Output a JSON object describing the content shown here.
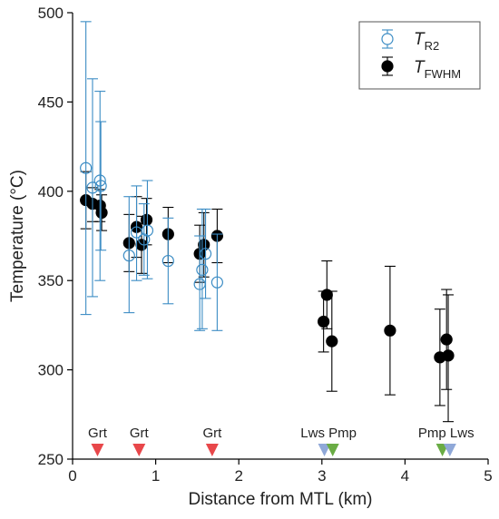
{
  "chart_data": {
    "type": "scatter",
    "title": "",
    "xlabel": "Distance from MTL (km)",
    "ylabel": "Temperature (°C)",
    "xlim": [
      0,
      5
    ],
    "ylim": [
      250,
      500
    ],
    "xticks": [
      0,
      1,
      2,
      3,
      4,
      5
    ],
    "yticks": [
      250,
      300,
      350,
      400,
      450,
      500
    ],
    "grid": false,
    "legend_position": "top-right",
    "series": [
      {
        "name_main": "T",
        "name_sub": "R2",
        "marker": "open-circle",
        "color": "#3b8cc4",
        "points": [
          {
            "x": 0.16,
            "y": 413,
            "lo": 331,
            "hi": 495
          },
          {
            "x": 0.24,
            "y": 402,
            "lo": 341,
            "hi": 463
          },
          {
            "x": 0.33,
            "y": 406,
            "lo": 350,
            "hi": 456
          },
          {
            "x": 0.34,
            "y": 403,
            "lo": 367,
            "hi": 439
          },
          {
            "x": 0.68,
            "y": 364,
            "lo": 332,
            "hi": 397
          },
          {
            "x": 0.77,
            "y": 377,
            "lo": 350,
            "hi": 403
          },
          {
            "x": 0.86,
            "y": 373,
            "lo": 353,
            "hi": 393
          },
          {
            "x": 0.9,
            "y": 378,
            "lo": 351,
            "hi": 406
          },
          {
            "x": 1.15,
            "y": 361,
            "lo": 337,
            "hi": 385
          },
          {
            "x": 1.53,
            "y": 348,
            "lo": 322,
            "hi": 375
          },
          {
            "x": 1.56,
            "y": 356,
            "lo": 323,
            "hi": 390
          },
          {
            "x": 1.6,
            "y": 365,
            "lo": 340,
            "hi": 390
          },
          {
            "x": 1.74,
            "y": 349,
            "lo": 322,
            "hi": 376
          }
        ]
      },
      {
        "name_main": "T",
        "name_sub": "FWHM",
        "marker": "filled-circle",
        "color": "#000000",
        "points": [
          {
            "x": 0.16,
            "y": 395,
            "lo": 379,
            "hi": 411
          },
          {
            "x": 0.24,
            "y": 393,
            "lo": 383,
            "hi": 402
          },
          {
            "x": 0.33,
            "y": 392,
            "lo": 383,
            "hi": 401
          },
          {
            "x": 0.35,
            "y": 388,
            "lo": 378,
            "hi": 398
          },
          {
            "x": 0.68,
            "y": 371,
            "lo": 355,
            "hi": 387
          },
          {
            "x": 0.77,
            "y": 380,
            "lo": 363,
            "hi": 397
          },
          {
            "x": 0.83,
            "y": 370,
            "lo": 354,
            "hi": 386
          },
          {
            "x": 0.89,
            "y": 384,
            "lo": 370,
            "hi": 396
          },
          {
            "x": 1.15,
            "y": 376,
            "lo": 360,
            "hi": 391
          },
          {
            "x": 1.53,
            "y": 365,
            "lo": 349,
            "hi": 381
          },
          {
            "x": 1.58,
            "y": 370,
            "lo": 352,
            "hi": 388
          },
          {
            "x": 1.74,
            "y": 375,
            "lo": 360,
            "hi": 390
          },
          {
            "x": 3.02,
            "y": 327,
            "lo": 310,
            "hi": 344
          },
          {
            "x": 3.06,
            "y": 342,
            "lo": 323,
            "hi": 361
          },
          {
            "x": 3.12,
            "y": 316,
            "lo": 288,
            "hi": 344
          },
          {
            "x": 3.82,
            "y": 322,
            "lo": 286,
            "hi": 358
          },
          {
            "x": 4.42,
            "y": 307,
            "lo": 280,
            "hi": 334
          },
          {
            "x": 4.5,
            "y": 317,
            "lo": 289,
            "hi": 345
          },
          {
            "x": 4.52,
            "y": 308,
            "lo": 271,
            "hi": 342
          }
        ]
      }
    ],
    "mineral_markers": [
      {
        "label": "Grt",
        "x": 0.3,
        "color": "#e8474a"
      },
      {
        "label": "Grt",
        "x": 0.8,
        "color": "#e8474a"
      },
      {
        "label": "Grt",
        "x": 1.68,
        "color": "#e8474a"
      },
      {
        "label": "Lws",
        "x": 3.03,
        "color": "#8fa8d8"
      },
      {
        "label": "Pmp",
        "x": 3.13,
        "color": "#6aac45"
      },
      {
        "label": "Pmp",
        "x": 4.45,
        "color": "#6aac45"
      },
      {
        "label": "Lws",
        "x": 4.54,
        "color": "#8fa8d8"
      }
    ]
  }
}
